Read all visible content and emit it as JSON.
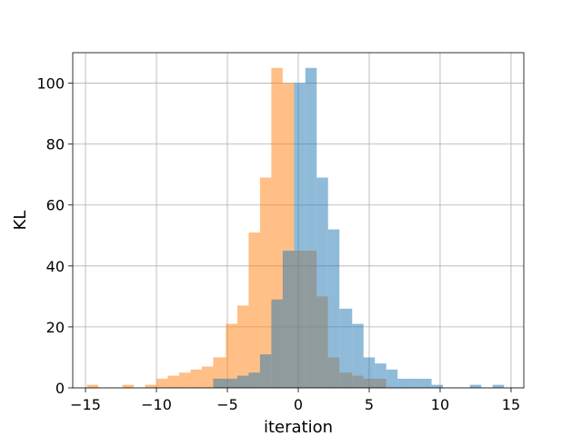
{
  "chart_data": {
    "type": "histogram",
    "xlabel": "iteration",
    "ylabel": "KL",
    "xlim": [
      -15.9,
      15.9
    ],
    "ylim": [
      0,
      110
    ],
    "xticks": [
      -15,
      -10,
      -5,
      0,
      5,
      10,
      15
    ],
    "yticks": [
      0,
      20,
      40,
      60,
      80,
      100
    ],
    "grid": true,
    "legend": false,
    "series": [
      {
        "color": "#ff7f0e",
        "alpha": 0.5,
        "bins": [
          [
            -14.9,
            -14.1,
            1
          ],
          [
            -12.4,
            -11.6,
            1
          ],
          [
            -10.8,
            -10.0,
            1
          ],
          [
            -10.0,
            -9.2,
            3
          ],
          [
            -9.2,
            -8.4,
            4
          ],
          [
            -8.4,
            -7.6,
            5
          ],
          [
            -7.6,
            -6.8,
            6
          ],
          [
            -6.8,
            -6.0,
            7
          ],
          [
            -6.0,
            -5.1,
            10
          ],
          [
            -5.1,
            -4.3,
            21
          ],
          [
            -4.3,
            -3.5,
            27
          ],
          [
            -3.5,
            -2.7,
            51
          ],
          [
            -2.7,
            -1.9,
            69
          ],
          [
            -1.9,
            -1.1,
            105
          ],
          [
            -1.1,
            -0.3,
            100
          ],
          [
            -0.3,
            0.5,
            45
          ],
          [
            0.5,
            1.3,
            45
          ],
          [
            1.3,
            2.1,
            30
          ],
          [
            2.1,
            2.9,
            10
          ],
          [
            2.9,
            3.8,
            5
          ],
          [
            3.8,
            4.6,
            4
          ],
          [
            4.6,
            5.4,
            3
          ],
          [
            5.4,
            6.2,
            3
          ]
        ]
      },
      {
        "color": "#1f77b4",
        "alpha": 0.5,
        "bins": [
          [
            -6.0,
            -5.1,
            3
          ],
          [
            -5.1,
            -4.3,
            3
          ],
          [
            -4.3,
            -3.5,
            4
          ],
          [
            -3.5,
            -2.7,
            5
          ],
          [
            -2.7,
            -1.9,
            11
          ],
          [
            -1.9,
            -1.1,
            29
          ],
          [
            -1.1,
            -0.3,
            45
          ],
          [
            -0.3,
            0.5,
            100
          ],
          [
            0.5,
            1.3,
            105
          ],
          [
            1.3,
            2.1,
            69
          ],
          [
            2.1,
            2.9,
            52
          ],
          [
            2.9,
            3.8,
            26
          ],
          [
            3.8,
            4.6,
            21
          ],
          [
            4.6,
            5.4,
            10
          ],
          [
            5.4,
            6.2,
            8
          ],
          [
            6.2,
            7.0,
            6
          ],
          [
            7.0,
            7.8,
            3
          ],
          [
            7.8,
            8.6,
            3
          ],
          [
            8.6,
            9.4,
            3
          ],
          [
            9.4,
            10.2,
            1
          ],
          [
            12.1,
            12.9,
            1
          ],
          [
            13.7,
            14.5,
            1
          ]
        ]
      }
    ]
  }
}
